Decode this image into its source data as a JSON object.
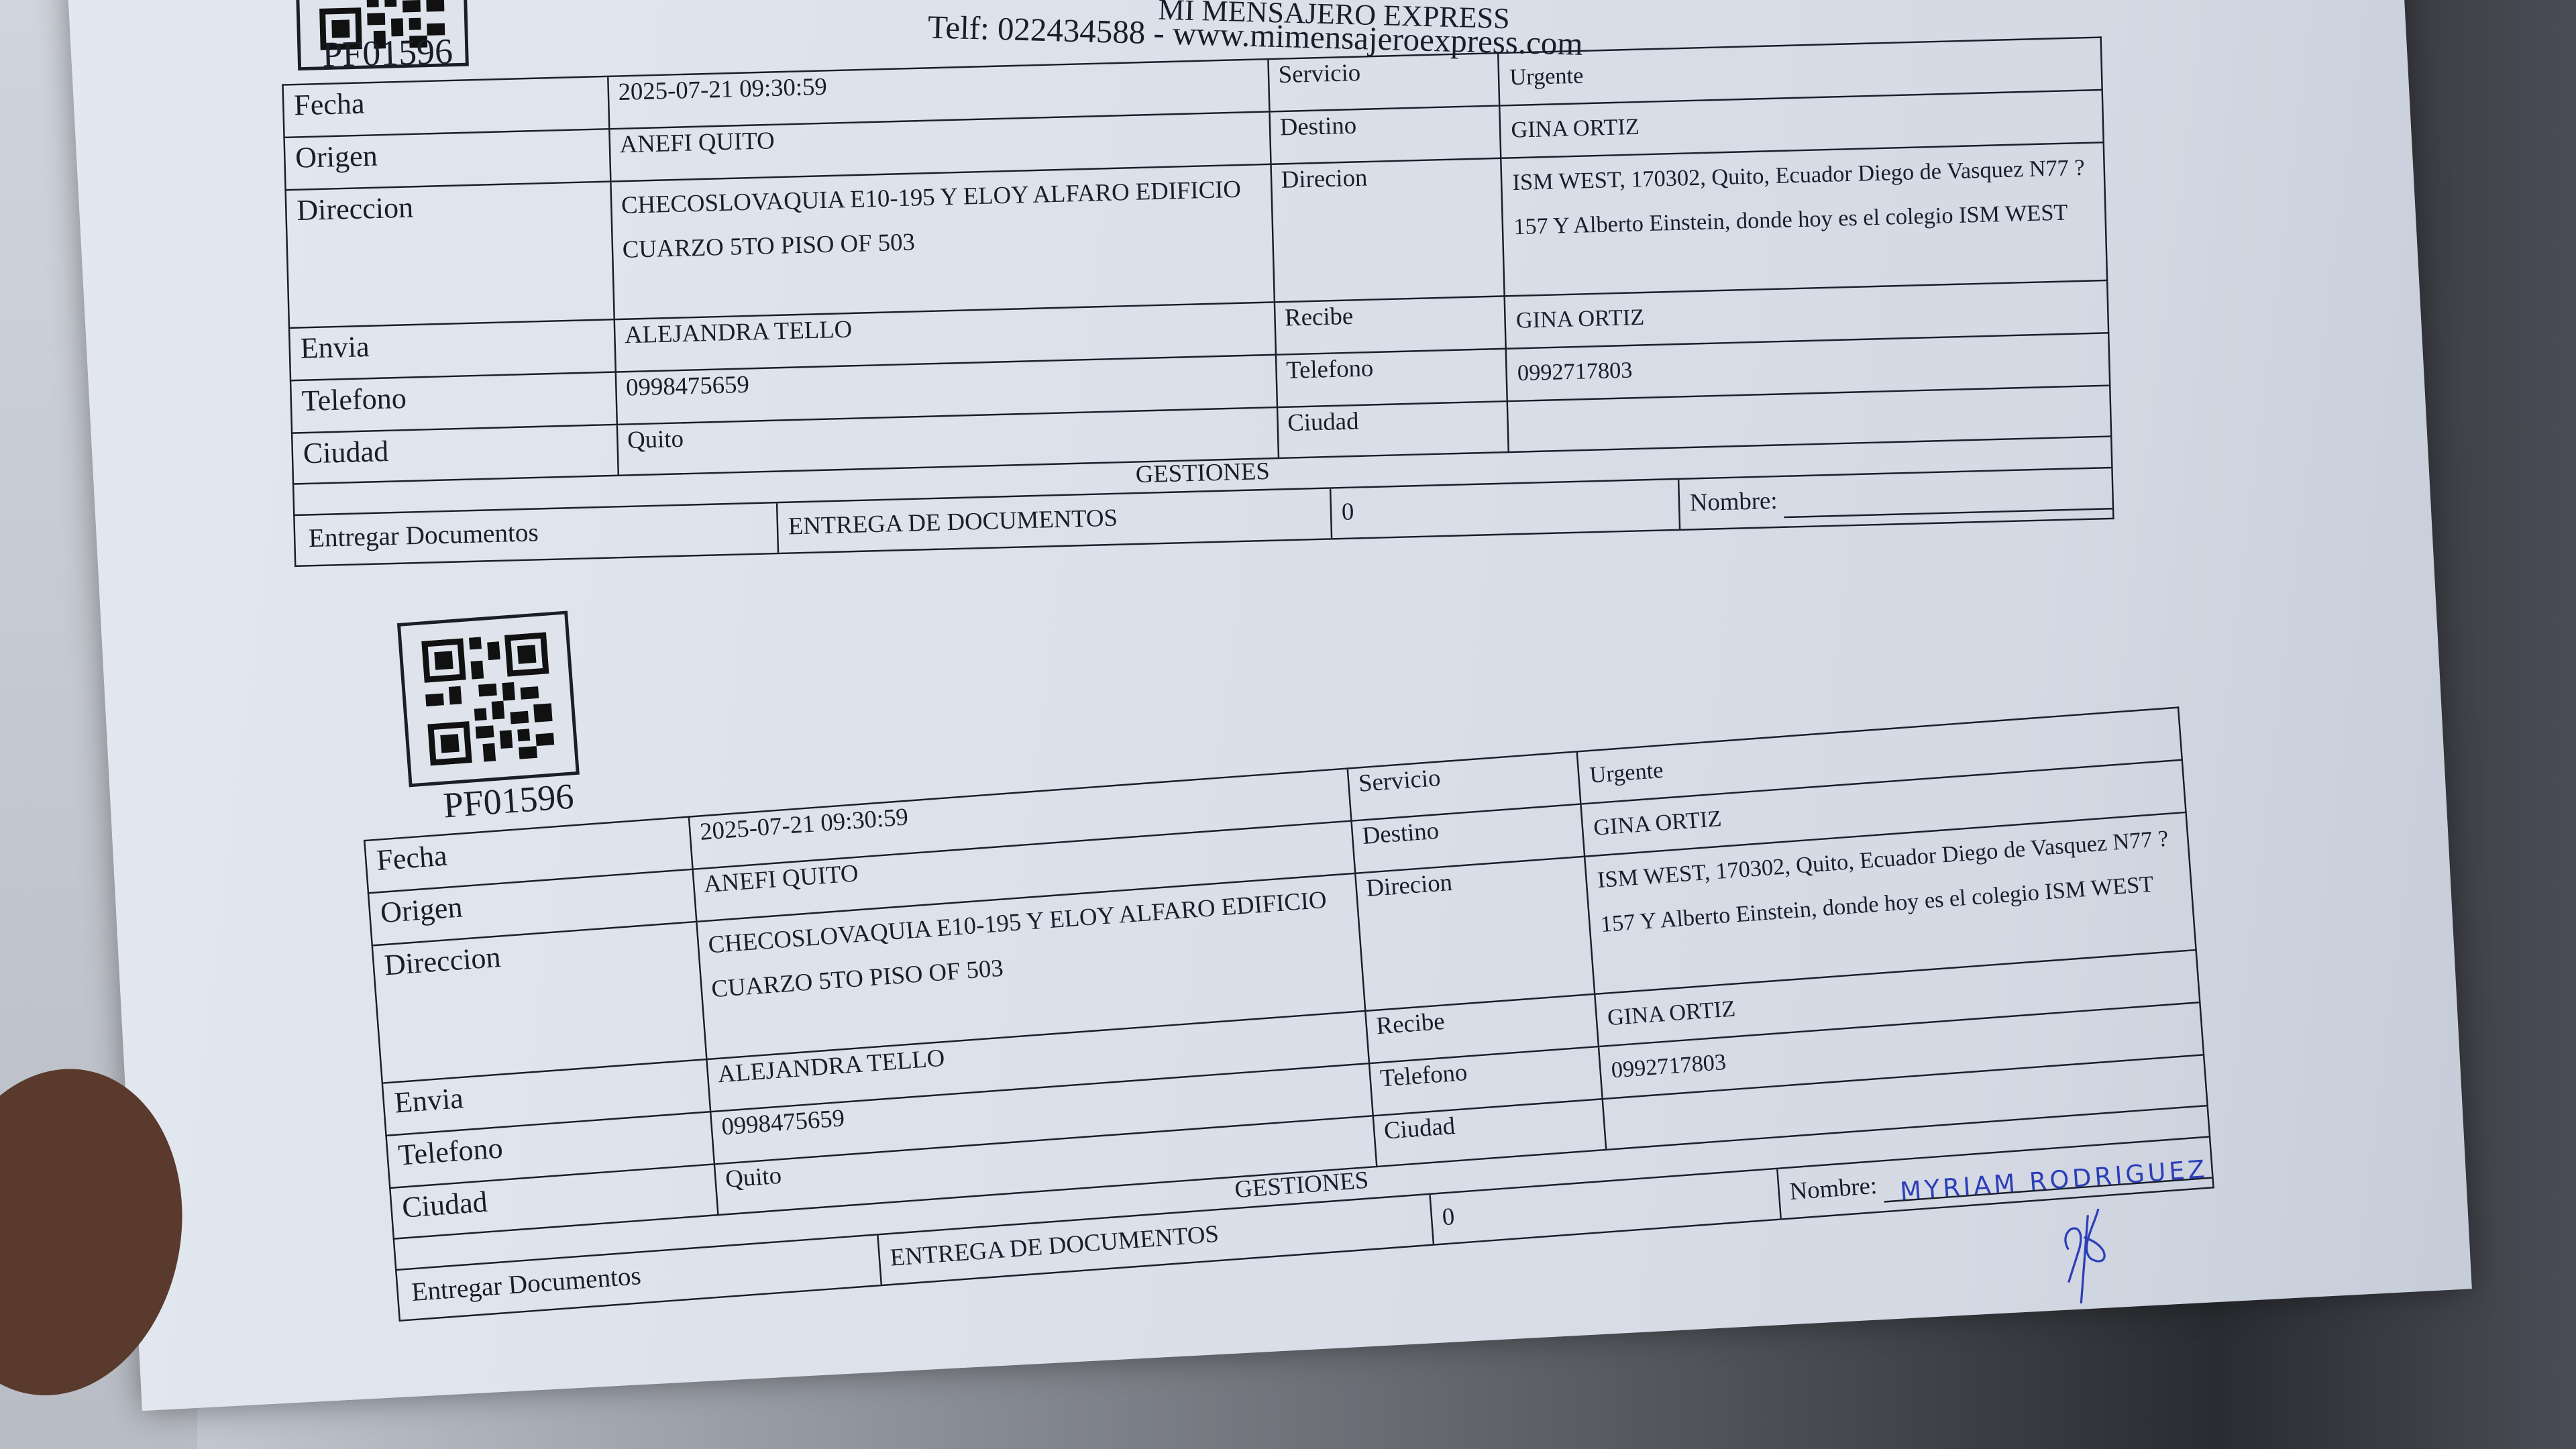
{
  "header": {
    "company": "MI MENSAJERO EXPRESS",
    "contact": "Telf: 022434588 - www.mimensajeroexpress.com"
  },
  "forms": [
    {
      "code": "PF01596",
      "fecha_label": "Fecha",
      "fecha": "2025-07-21 09:30:59",
      "origen_label": "Origen",
      "origen": "ANEFI QUITO",
      "direccion_label": "Direccion",
      "direccion": "CHECOSLOVAQUIA E10-195 Y ELOY ALFARO EDIFICIO CUARZO 5TO PISO OF 503",
      "envia_label": "Envia",
      "envia": "ALEJANDRA TELLO",
      "telefono_label": "Telefono",
      "telefono": "0998475659",
      "ciudad_label": "Ciudad",
      "ciudad": "Quito",
      "servicio_label": "Servicio",
      "servicio": "Urgente",
      "destino_label": "Destino",
      "destino": "GINA ORTIZ",
      "direcion_label": "Direcion",
      "direcion": "ISM WEST, 170302, Quito, Ecuador Diego de Vasquez N77 ? 157 Y Alberto Einstein, donde hoy es el colegio ISM WEST",
      "recibe_label": "Recibe",
      "recibe": "GINA ORTIZ",
      "telefono2_label": "Telefono",
      "telefono2": "0992717803",
      "ciudad2_label": "Ciudad",
      "ciudad2": "",
      "gestiones_label": "GESTIONES",
      "gestion_tipo": "Entregar Documentos",
      "gestion_desc": "ENTREGA DE DOCUMENTOS",
      "gestion_cant": "0",
      "nombre_label": "Nombre:",
      "nombre": ""
    },
    {
      "code": "PF01596",
      "fecha_label": "Fecha",
      "fecha": "2025-07-21 09:30:59",
      "origen_label": "Origen",
      "origen": "ANEFI QUITO",
      "direccion_label": "Direccion",
      "direccion": "CHECOSLOVAQUIA E10-195 Y ELOY ALFARO EDIFICIO CUARZO 5TO PISO OF 503",
      "envia_label": "Envia",
      "envia": "ALEJANDRA TELLO",
      "telefono_label": "Telefono",
      "telefono": "0998475659",
      "ciudad_label": "Ciudad",
      "ciudad": "Quito",
      "servicio_label": "Servicio",
      "servicio": "Urgente",
      "destino_label": "Destino",
      "destino": "GINA ORTIZ",
      "direcion_label": "Direcion",
      "direcion": "ISM WEST, 170302, Quito, Ecuador Diego de Vasquez N77 ? 157 Y Alberto Einstein, donde hoy es el colegio ISM WEST",
      "recibe_label": "Recibe",
      "recibe": "GINA ORTIZ",
      "telefono2_label": "Telefono",
      "telefono2": "0992717803",
      "ciudad2_label": "Ciudad",
      "ciudad2": "",
      "gestiones_label": "GESTIONES",
      "gestion_tipo": "Entregar Documentos",
      "gestion_desc": "ENTREGA DE DOCUMENTOS",
      "gestion_cant": "0",
      "nombre_label": "Nombre:",
      "nombre": "MYRIAM RODRIGUEZ"
    }
  ],
  "ink_color": "#2b3fb8"
}
